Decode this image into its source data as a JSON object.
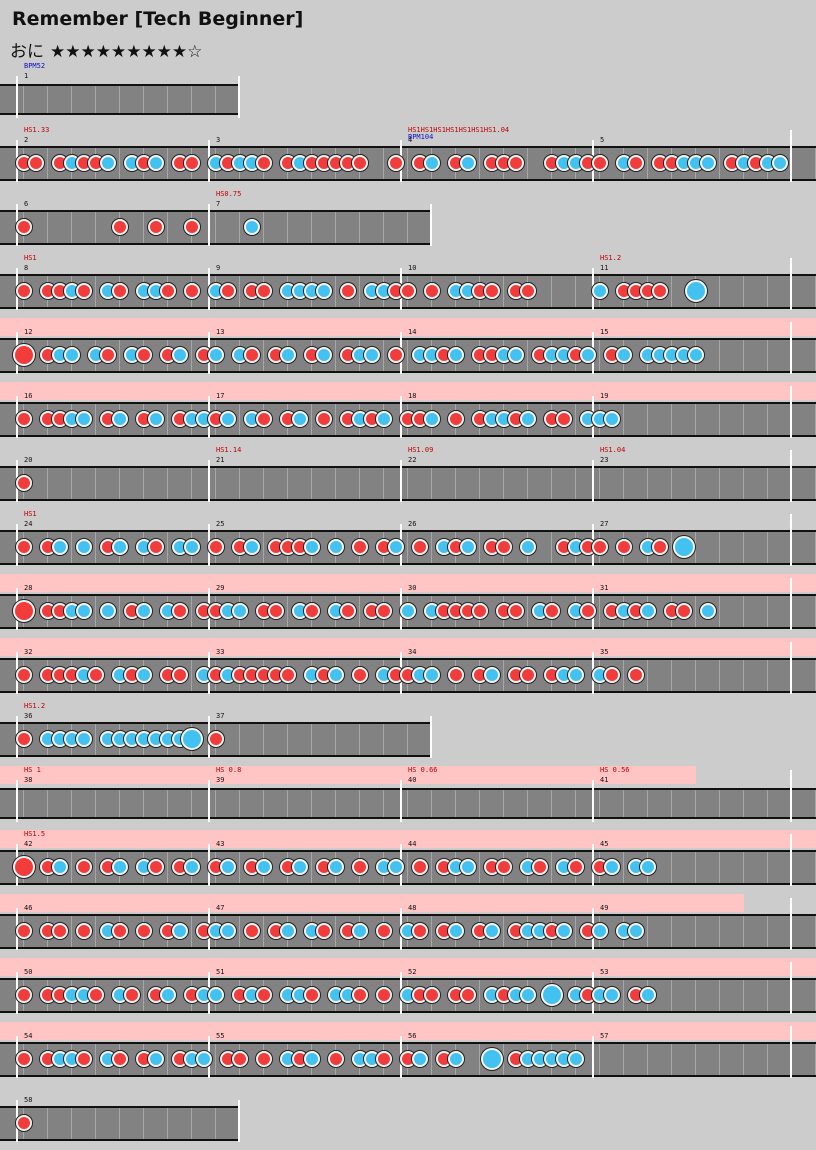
{
  "title": "Remember [Tech Beginner]",
  "difficulty": {
    "label": "おに",
    "stars": "★★★★★★★★★☆"
  },
  "colors": {
    "don": "#f23c3c",
    "ka": "#42c2f0",
    "gogo": "#ffc4c4",
    "lane": "#828282",
    "background": "#cccccc"
  },
  "rows": [
    {
      "lane_end": 240,
      "gogo_end": 0,
      "measures": [
        {
          "num": "1",
          "bpm": "BPM52"
        }
      ],
      "notes": ""
    },
    {
      "lane_end": 816,
      "gogo_end": 0,
      "measures": [
        {
          "num": "2",
          "sv": "HS1.33"
        },
        {
          "num": "3"
        },
        {
          "num": "4",
          "bpm": "BPM104",
          "sv": "HS1HS1HS1HS1HS1HS1HS1.04"
        },
        {
          "num": "5"
        }
      ],
      "notes": "dd.dkddk.kdk.dd.kdkkd.dkddddd..d.dk.dk.ddd..dkkdd.kd.ddkkk.dkdkkk"
    },
    {
      "lane_end": 432,
      "gogo_end": 0,
      "measures": [
        {
          "num": "6"
        },
        {
          "num": "7",
          "sv": "HS0.75"
        }
      ],
      "notes": "d.......d..d..d....k"
    },
    {
      "lane_end": 816,
      "gogo_end": 0,
      "measures": [
        {
          "num": "8",
          "sv": "HS1"
        },
        {
          "num": "9"
        },
        {
          "num": "10"
        },
        {
          "num": "11",
          "sv": "HS1.2"
        }
      ],
      "notes": "d.ddkd.kd.kkd.d.kd.dd.kkkk.d.kkdd.d.kkdd.dd.....k.dddd..K"
    },
    {
      "lane_end": 816,
      "gogo_end": 816,
      "measures": [
        {
          "num": "12"
        },
        {
          "num": "13"
        },
        {
          "num": "14"
        },
        {
          "num": "15"
        }
      ],
      "notes": "D.dkk.kd.kd.dk.dk.kd.dk.dk.dkk.d.kkdk.ddkk.dkkdk.dk.kkkkk"
    },
    {
      "lane_end": 816,
      "gogo_end": 816,
      "measures": [
        {
          "num": "16"
        },
        {
          "num": "17"
        },
        {
          "num": "18"
        },
        {
          "num": "19"
        }
      ],
      "notes": "d.ddkk.dk.dk.dkkdk.kd.dk.d.dkdk.ddk.d.dkkdk.dd.kkk"
    },
    {
      "lane_end": 816,
      "gogo_end": 0,
      "measures": [
        {
          "num": "20"
        },
        {
          "num": "21",
          "sv": "HS1.14"
        },
        {
          "num": "22",
          "sv": "HS1.09"
        },
        {
          "num": "23",
          "sv": "HS1.04"
        }
      ],
      "notes": "d"
    },
    {
      "lane_end": 816,
      "gogo_end": 0,
      "measures": [
        {
          "num": "24",
          "sv": "HS1"
        },
        {
          "num": "25"
        },
        {
          "num": "26"
        },
        {
          "num": "27"
        }
      ],
      "notes": "d.dk.k.dk.kd.kk.d.dk.dddk.k.d.dk.d.kdk.dd.k..dkdd.d.kd.K"
    },
    {
      "lane_end": 816,
      "gogo_end": 816,
      "measures": [
        {
          "num": "28"
        },
        {
          "num": "29"
        },
        {
          "num": "30"
        },
        {
          "num": "31"
        }
      ],
      "notes": "D.ddkk.k.dk.kd.ddkk.dd.kd.kd.dd.k.kdddd.dd.kd.kd.dkdk.dd.k"
    },
    {
      "lane_end": 816,
      "gogo_end": 816,
      "measures": [
        {
          "num": "32"
        },
        {
          "num": "33"
        },
        {
          "num": "34"
        },
        {
          "num": "35"
        }
      ],
      "notes": "d.dddkd.kdk.dd.kdkddddd.kdk.d.kddkk.d.dk.dd.dkk.kd.d"
    },
    {
      "lane_end": 432,
      "gogo_end": 0,
      "measures": [
        {
          "num": "36",
          "sv": "HS1.2"
        },
        {
          "num": "37"
        }
      ],
      "notes": "d.kkkk.kkkkkkkK.d"
    },
    {
      "lane_end": 816,
      "gogo_end": 696,
      "measures": [
        {
          "num": "38",
          "sv": "HS 1"
        },
        {
          "num": "39",
          "sv": "HS 0.8"
        },
        {
          "num": "40",
          "sv": "HS 0.66"
        },
        {
          "num": "41",
          "sv": "HS 0.56"
        }
      ],
      "notes": ""
    },
    {
      "lane_end": 816,
      "gogo_end": 816,
      "measures": [
        {
          "num": "42",
          "sv": "HS1.5"
        },
        {
          "num": "43"
        },
        {
          "num": "44"
        },
        {
          "num": "45"
        }
      ],
      "notes": "D.dk.d.dk.kd.dk.dk.dk.dk.dk.d.kk.d.dkk.dd.kd.kd.dk.kk"
    },
    {
      "lane_end": 816,
      "gogo_end": 744,
      "measures": [
        {
          "num": "46"
        },
        {
          "num": "47"
        },
        {
          "num": "48"
        },
        {
          "num": "49"
        }
      ],
      "notes": "d.dd.d.kd.d.dk.dkk.d.dk.kd.dk.d.kd.dk.dk.dkkdk.dk.kk"
    },
    {
      "lane_end": 816,
      "gogo_end": 816,
      "measures": [
        {
          "num": "50"
        },
        {
          "num": "51"
        },
        {
          "num": "52"
        },
        {
          "num": "53"
        }
      ],
      "notes": "d.ddkkd.kd.dk.dkk.dkd.kkd.kkd.d.kdd.dd.kdkk.K.kdkk.dk"
    },
    {
      "lane_end": 816,
      "gogo_end": 816,
      "measures": [
        {
          "num": "54"
        },
        {
          "num": "55"
        },
        {
          "num": "56"
        },
        {
          "num": "57"
        }
      ],
      "notes": "d.dkkd.kd.dk.dkk.dd.d.kdk.d.kkd.dk.dk..K.dkkkkk"
    },
    {
      "lane_end": 240,
      "gogo_end": 0,
      "measures": [
        {
          "num": "58"
        }
      ],
      "notes": "d"
    }
  ]
}
